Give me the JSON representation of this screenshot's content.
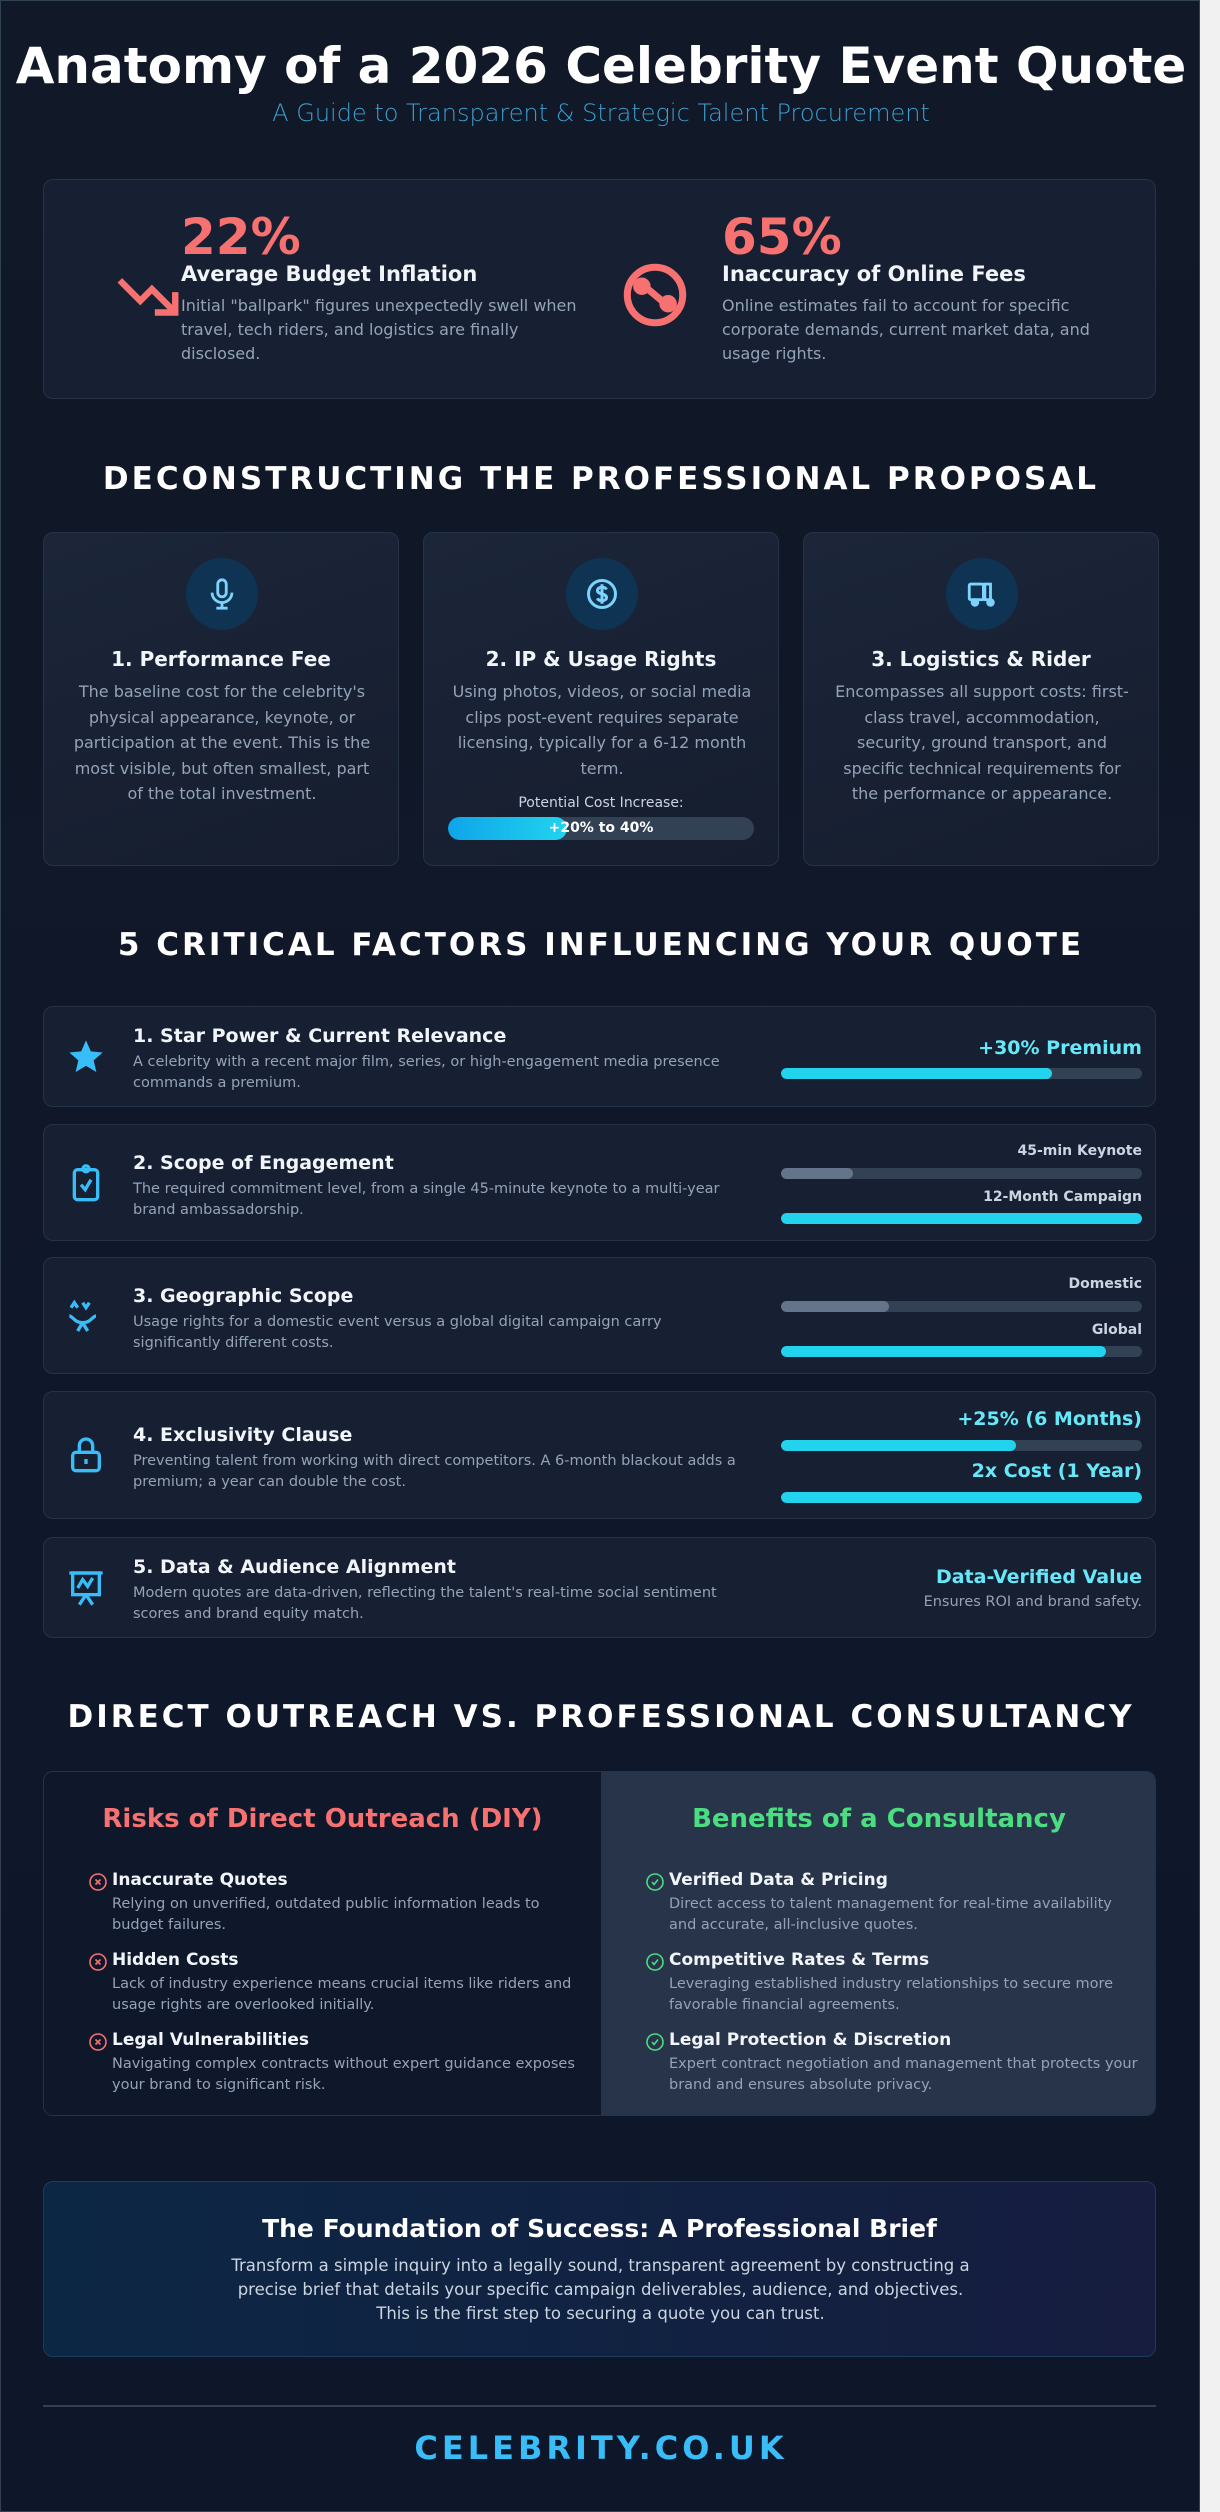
{
  "header": {
    "title": "Anatomy of a 2026 Celebrity Event Quote",
    "subtitle": "A Guide to Transparent & Strategic Talent Procurement"
  },
  "stats": [
    {
      "icon": "trending-down-icon",
      "value": "22%",
      "heading": "Average Budget Inflation",
      "text": "Initial \"ballpark\" figures unexpectedly swell when travel, tech riders, and logistics are finally disclosed."
    },
    {
      "icon": "no-connection-icon",
      "value": "65%",
      "heading": "Inaccuracy of Online Fees",
      "text": "Online estimates fail to account for specific corporate demands, current market data, and usage rights."
    }
  ],
  "proposal": {
    "heading": "DECONSTRUCTING THE PROFESSIONAL PROPOSAL",
    "cards": [
      {
        "icon": "microphone-icon",
        "title": "1. Performance Fee",
        "text": "The baseline cost for the celebrity's physical appearance, keynote, or participation at the event. This is the most visible, but often smallest, part of the total investment."
      },
      {
        "icon": "dollar-circle-icon",
        "title": "2. IP & Usage Rights",
        "text": "Using photos, videos, or social media clips post-event requires separate licensing, typically for a 6-12 month term.",
        "progress_label": "Potential Cost Increase:",
        "progress_text": "+20% to 40%",
        "progress_fill": 0.39
      },
      {
        "icon": "truck-icon",
        "title": "3. Logistics & Rider",
        "text": "Encompasses all support costs: first-class travel, accommodation, security, ground transport, and specific technical requirements for the performance or appearance."
      }
    ]
  },
  "factors": {
    "heading": "5 CRITICAL FACTORS INFLUENCING YOUR QUOTE",
    "items": [
      {
        "icon": "star-icon",
        "title": "1. Star Power & Current Relevance",
        "desc": "A celebrity with a recent major film, series, or high-engagement media presence commands a premium.",
        "bars": [
          {
            "label": "+30% Premium",
            "fill": 0.75
          }
        ]
      },
      {
        "icon": "clipboard-check-icon",
        "title": "2. Scope of Engagement",
        "desc": "The required commitment level, from a single 45-minute keynote to a multi-year brand ambassadorship.",
        "bars": [
          {
            "label": "45-min Keynote",
            "fill": 0.2
          },
          {
            "label": "12-Month Campaign",
            "fill": 1.0
          }
        ]
      },
      {
        "icon": "globe-network-icon",
        "title": "3. Geographic Scope",
        "desc": "Usage rights for a domestic event versus a global digital campaign carry significantly different costs.",
        "bars": [
          {
            "label": "Domestic",
            "fill": 0.3
          },
          {
            "label": "Global",
            "fill": 0.9
          }
        ]
      },
      {
        "icon": "lock-icon",
        "title": "4. Exclusivity Clause",
        "desc": "Preventing talent from working with direct competitors. A 6-month blackout adds a premium; a year can double the cost.",
        "bars": [
          {
            "label": "+25% (6 Months)",
            "fill": 0.65
          },
          {
            "label": "2x Cost (1 Year)",
            "fill": 1.0
          }
        ]
      },
      {
        "icon": "presentation-chart-icon",
        "title": "5. Data & Audience Alignment",
        "desc": "Modern quotes are data-driven, reflecting the talent's real-time social sentiment scores and brand equity match.",
        "value": "Data-Verified Value",
        "note": "Ensures ROI and brand safety."
      }
    ]
  },
  "comparison": {
    "heading": "DIRECT OUTREACH VS. PROFESSIONAL CONSULTANCY",
    "risks": {
      "title": "Risks of Direct Outreach (DIY)",
      "color": "#f87171",
      "items": [
        {
          "title": "Inaccurate Quotes",
          "desc": "Relying on unverified, outdated public information leads to budget failures."
        },
        {
          "title": "Hidden Costs",
          "desc": "Lack of industry experience means crucial items like riders and usage rights are overlooked initially."
        },
        {
          "title": "Legal Vulnerabilities",
          "desc": "Navigating complex contracts without expert guidance exposes your brand to significant risk."
        }
      ]
    },
    "benefits": {
      "title": "Benefits of a Consultancy",
      "color": "#4ade80",
      "items": [
        {
          "title": "Verified Data & Pricing",
          "desc": "Direct access to talent management for real-time availability and accurate, all-inclusive quotes."
        },
        {
          "title": "Competitive Rates & Terms",
          "desc": "Leveraging established industry relationships to secure more favorable financial agreements."
        },
        {
          "title": "Legal Protection & Discretion",
          "desc": "Expert contract negotiation and management that protects your brand and ensures absolute privacy."
        }
      ]
    }
  },
  "cta": {
    "title": "The Foundation of Success: A Professional Brief",
    "text": "Transform a simple inquiry into a legally sound, transparent agreement by constructing a precise brief that details your specific campaign deliverables, audience, and objectives. This is the first step to securing a quote you can trust."
  },
  "footer": {
    "brand": "CELEBRITY.CO.UK"
  },
  "colors": {
    "accent": "#22d3ee",
    "alert": "#f87171",
    "success": "#4ade80",
    "brand": "#38bdf8"
  }
}
